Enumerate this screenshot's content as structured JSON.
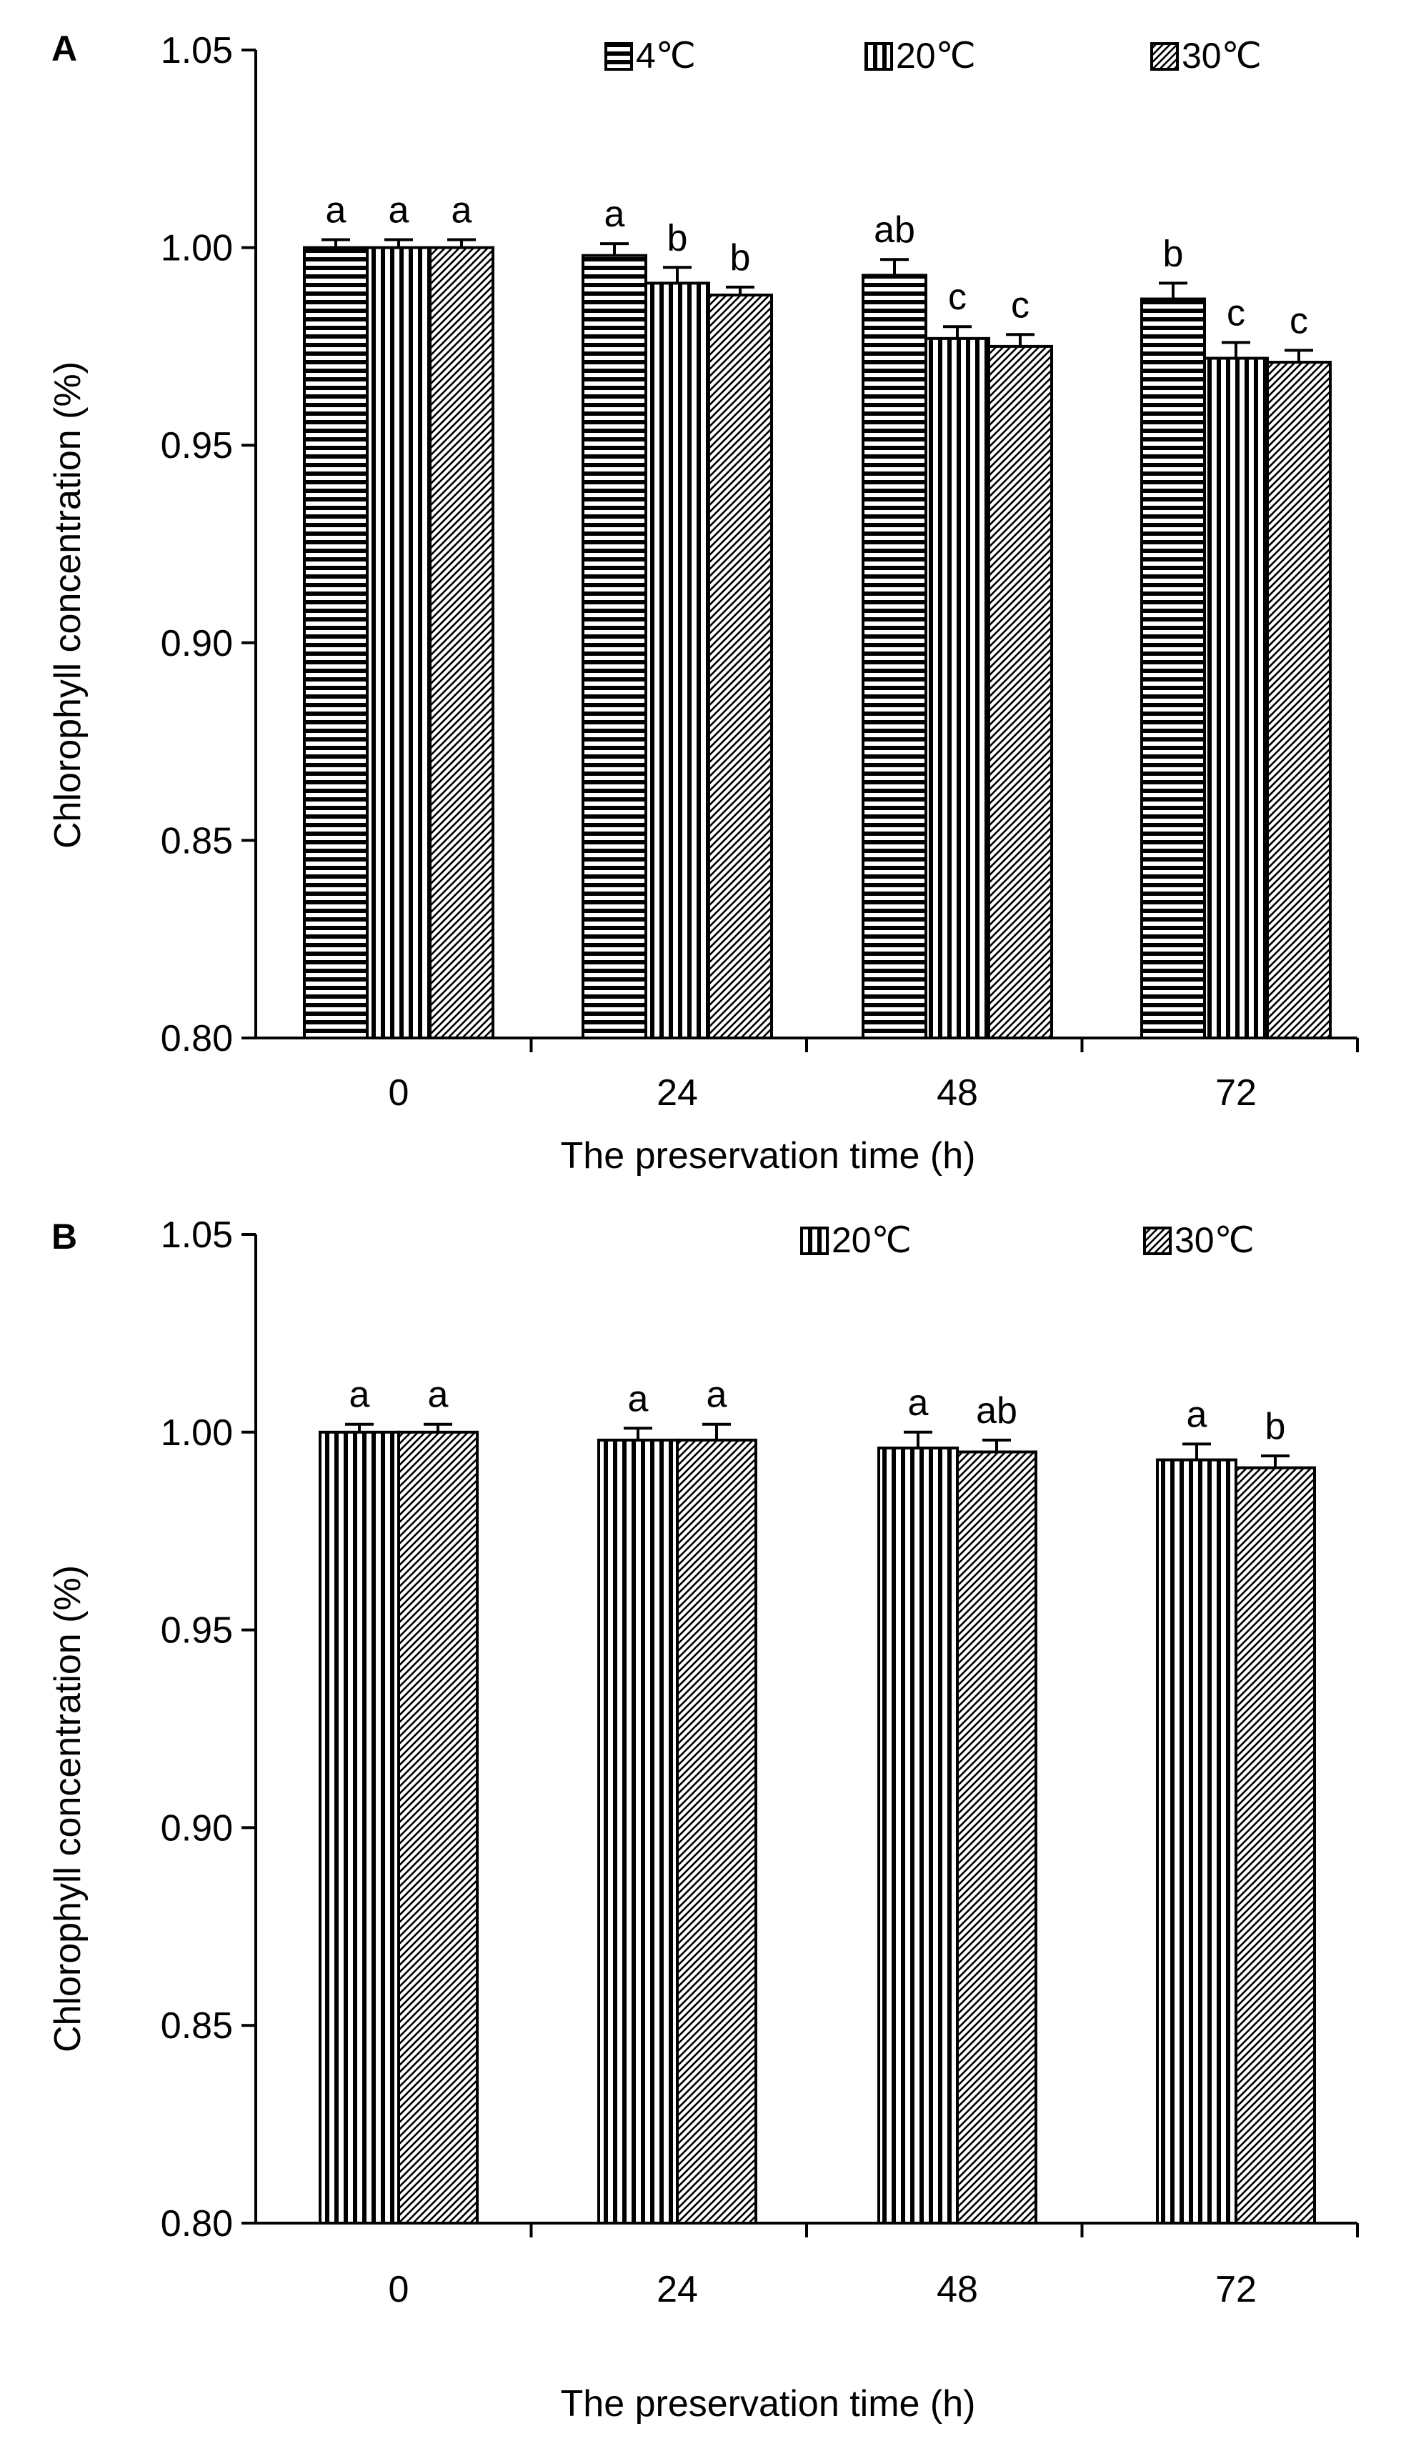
{
  "chart_data": [
    {
      "panel": "A",
      "type": "bar",
      "categories": [
        "0",
        "24",
        "48",
        "72"
      ],
      "series": [
        {
          "name": "4℃",
          "pattern": "horizontal",
          "values": [
            1.0,
            0.998,
            0.993,
            0.987
          ],
          "errors": [
            0.002,
            0.003,
            0.004,
            0.004
          ],
          "letters": [
            "a",
            "a",
            "ab",
            "b"
          ]
        },
        {
          "name": "20℃",
          "pattern": "vertical",
          "values": [
            1.0,
            0.991,
            0.977,
            0.972
          ],
          "errors": [
            0.002,
            0.004,
            0.003,
            0.004
          ],
          "letters": [
            "a",
            "b",
            "c",
            "c"
          ]
        },
        {
          "name": "30℃",
          "pattern": "diagonal",
          "values": [
            1.0,
            0.988,
            0.975,
            0.971
          ],
          "errors": [
            0.002,
            0.002,
            0.003,
            0.003
          ],
          "letters": [
            "a",
            "b",
            "c",
            "c"
          ]
        }
      ],
      "xlabel": "The preservation time (h)",
      "ylabel": "Chlorophyll concentration (%)",
      "ylim": [
        0.8,
        1.05
      ],
      "yticks": [
        "0.80",
        "0.85",
        "0.90",
        "0.95",
        "1.00",
        "1.05"
      ],
      "grid": false,
      "legend": "top"
    },
    {
      "panel": "B",
      "type": "bar",
      "categories": [
        "0",
        "24",
        "48",
        "72"
      ],
      "series": [
        {
          "name": "20℃",
          "pattern": "vertical",
          "values": [
            1.0,
            0.998,
            0.996,
            0.993
          ],
          "errors": [
            0.002,
            0.003,
            0.004,
            0.004
          ],
          "letters": [
            "a",
            "a",
            "a",
            "a"
          ]
        },
        {
          "name": "30℃",
          "pattern": "diagonal",
          "values": [
            1.0,
            0.998,
            0.995,
            0.991
          ],
          "errors": [
            0.002,
            0.004,
            0.003,
            0.003
          ],
          "letters": [
            "a",
            "a",
            "ab",
            "b"
          ]
        }
      ],
      "xlabel": "The preservation time (h)",
      "ylabel": "Chlorophyll concentration (%)",
      "ylim": [
        0.8,
        1.05
      ],
      "yticks": [
        "0.80",
        "0.85",
        "0.90",
        "0.95",
        "1.00",
        "1.05"
      ],
      "grid": false,
      "legend": "top-right"
    }
  ]
}
